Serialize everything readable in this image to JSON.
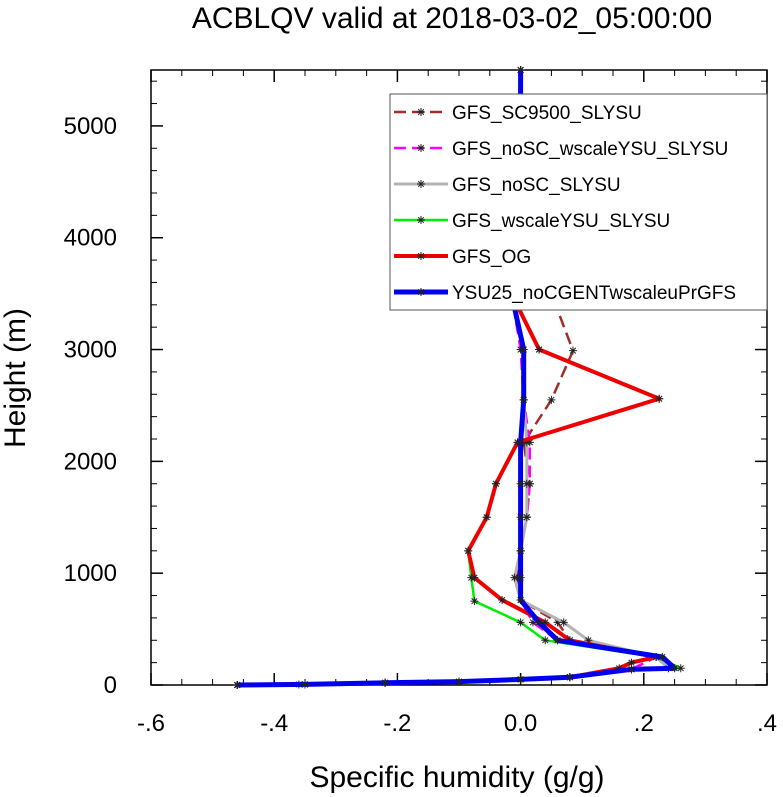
{
  "chart_data": {
    "type": "line",
    "title": "ACBLQV valid at 2018-03-02_05:00:00",
    "xlabel": "Specific humidity (g/g)",
    "ylabel": "Height (m)",
    "xlim": [
      -0.6,
      0.4
    ],
    "ylim": [
      0,
      5500
    ],
    "xticks": [
      -0.6,
      -0.4,
      -0.2,
      0.0,
      0.2,
      0.4
    ],
    "xtick_labels": [
      "-.6",
      "-.4",
      "-.2",
      "0.0",
      ".2",
      ".4"
    ],
    "yticks": [
      0,
      1000,
      2000,
      3000,
      4000,
      5000
    ],
    "ytick_labels": [
      "0",
      "1000",
      "2000",
      "3000",
      "4000",
      "5000"
    ],
    "grid": false,
    "legend_position": "top-right",
    "series": [
      {
        "name": "GFS_SC9500_SLYSU",
        "color": "#a52a2a",
        "dash": "dashed",
        "width": 2.5,
        "points": [
          [
            -0.46,
            0
          ],
          [
            -0.36,
            5
          ],
          [
            -0.22,
            20
          ],
          [
            -0.1,
            30
          ],
          [
            0.0,
            50
          ],
          [
            0.08,
            70
          ],
          [
            0.18,
            140
          ],
          [
            0.22,
            250
          ],
          [
            0.08,
            400
          ],
          [
            0.06,
            560
          ],
          [
            0.0,
            760
          ],
          [
            -0.005,
            960
          ],
          [
            0.0,
            1200
          ],
          [
            0.01,
            1500
          ],
          [
            0.015,
            1800
          ],
          [
            0.005,
            2170
          ],
          [
            0.05,
            2550
          ],
          [
            0.085,
            2990
          ],
          [
            0.05,
            3500
          ],
          [
            0.02,
            4060
          ],
          [
            0.005,
            4650
          ],
          [
            0.0,
            5200
          ],
          [
            0.0,
            5500
          ]
        ]
      },
      {
        "name": "GFS_noSC_wscaleYSU_SLYSU",
        "color": "#ff00ff",
        "dash": "dashed",
        "width": 2.5,
        "points": [
          [
            -0.46,
            0
          ],
          [
            -0.35,
            5
          ],
          [
            -0.22,
            20
          ],
          [
            -0.1,
            30
          ],
          [
            0.0,
            50
          ],
          [
            0.08,
            70
          ],
          [
            0.18,
            140
          ],
          [
            0.22,
            250
          ],
          [
            0.06,
            400
          ],
          [
            0.02,
            560
          ],
          [
            0.0,
            760
          ],
          [
            -0.005,
            960
          ],
          [
            0.0,
            1200
          ],
          [
            0.01,
            1500
          ],
          [
            0.015,
            1800
          ],
          [
            0.015,
            2170
          ],
          [
            0.005,
            2550
          ],
          [
            0.0,
            3000
          ],
          [
            -0.015,
            3500
          ],
          [
            -0.005,
            4060
          ],
          [
            0.0,
            4650
          ],
          [
            0.0,
            5200
          ],
          [
            0.0,
            5500
          ]
        ]
      },
      {
        "name": "GFS_noSC_SLYSU",
        "color": "#b4b4b4",
        "dash": "solid",
        "width": 3,
        "points": [
          [
            -0.46,
            0
          ],
          [
            -0.35,
            5
          ],
          [
            -0.22,
            20
          ],
          [
            -0.1,
            30
          ],
          [
            0.0,
            50
          ],
          [
            0.08,
            70
          ],
          [
            0.18,
            140
          ],
          [
            0.24,
            150
          ],
          [
            0.22,
            250
          ],
          [
            0.11,
            400
          ],
          [
            0.07,
            560
          ],
          [
            0.0,
            760
          ],
          [
            -0.01,
            960
          ],
          [
            0.0,
            1200
          ],
          [
            0.01,
            1500
          ],
          [
            0.01,
            1800
          ],
          [
            0.01,
            2170
          ],
          [
            0.005,
            2550
          ],
          [
            0.005,
            3000
          ],
          [
            -0.015,
            3500
          ],
          [
            -0.005,
            4060
          ],
          [
            0.0,
            4650
          ],
          [
            0.0,
            5200
          ],
          [
            0.0,
            5500
          ]
        ]
      },
      {
        "name": "GFS_wscaleYSU_SLYSU",
        "color": "#00ee00",
        "dash": "solid",
        "width": 2.5,
        "points": [
          [
            -0.46,
            0
          ],
          [
            -0.35,
            5
          ],
          [
            -0.22,
            20
          ],
          [
            -0.1,
            30
          ],
          [
            0.0,
            50
          ],
          [
            0.08,
            70
          ],
          [
            0.18,
            140
          ],
          [
            0.26,
            150
          ],
          [
            0.22,
            250
          ],
          [
            0.04,
            400
          ],
          [
            0.0,
            560
          ],
          [
            -0.075,
            750
          ],
          [
            -0.08,
            960
          ],
          [
            -0.085,
            1200
          ],
          [
            -0.055,
            1500
          ],
          [
            -0.04,
            1800
          ],
          [
            -0.005,
            2170
          ],
          [
            0.225,
            2560
          ],
          [
            0.03,
            3000
          ],
          [
            -0.015,
            3500
          ],
          [
            -0.005,
            4060
          ],
          [
            0.0,
            4650
          ],
          [
            0.0,
            5200
          ],
          [
            0.0,
            5500
          ]
        ]
      },
      {
        "name": "GFS_OG",
        "color": "#ee0000",
        "dash": "solid",
        "width": 4,
        "points": [
          [
            -0.46,
            0
          ],
          [
            -0.35,
            5
          ],
          [
            -0.22,
            20
          ],
          [
            -0.1,
            30
          ],
          [
            0.0,
            50
          ],
          [
            0.08,
            70
          ],
          [
            0.16,
            150
          ],
          [
            0.18,
            200
          ],
          [
            0.22,
            250
          ],
          [
            0.08,
            400
          ],
          [
            0.04,
            560
          ],
          [
            -0.03,
            760
          ],
          [
            -0.075,
            960
          ],
          [
            -0.085,
            1200
          ],
          [
            -0.055,
            1500
          ],
          [
            -0.04,
            1800
          ],
          [
            -0.005,
            2170
          ],
          [
            0.225,
            2560
          ],
          [
            0.03,
            3000
          ],
          [
            -0.015,
            3500
          ],
          [
            -0.005,
            4060
          ],
          [
            0.0,
            4650
          ],
          [
            0.0,
            5200
          ],
          [
            0.0,
            5500
          ]
        ]
      },
      {
        "name": "YSU25_noCGENTwscaleuPrGFS",
        "color": "#0000ee",
        "dash": "solid",
        "width": 5,
        "points": [
          [
            -0.46,
            0
          ],
          [
            -0.35,
            5
          ],
          [
            -0.22,
            20
          ],
          [
            -0.1,
            30
          ],
          [
            0.0,
            50
          ],
          [
            0.08,
            70
          ],
          [
            0.18,
            140
          ],
          [
            0.25,
            150
          ],
          [
            0.23,
            250
          ],
          [
            0.06,
            400
          ],
          [
            0.03,
            560
          ],
          [
            0.0,
            760
          ],
          [
            0.0,
            960
          ],
          [
            0.0,
            1200
          ],
          [
            0.0,
            1500
          ],
          [
            0.0,
            1800
          ],
          [
            0.0,
            2170
          ],
          [
            0.005,
            2550
          ],
          [
            0.005,
            3000
          ],
          [
            -0.015,
            3500
          ],
          [
            -0.005,
            4060
          ],
          [
            0.0,
            4650
          ],
          [
            0.0,
            5200
          ],
          [
            0.0,
            5500
          ]
        ]
      }
    ]
  }
}
